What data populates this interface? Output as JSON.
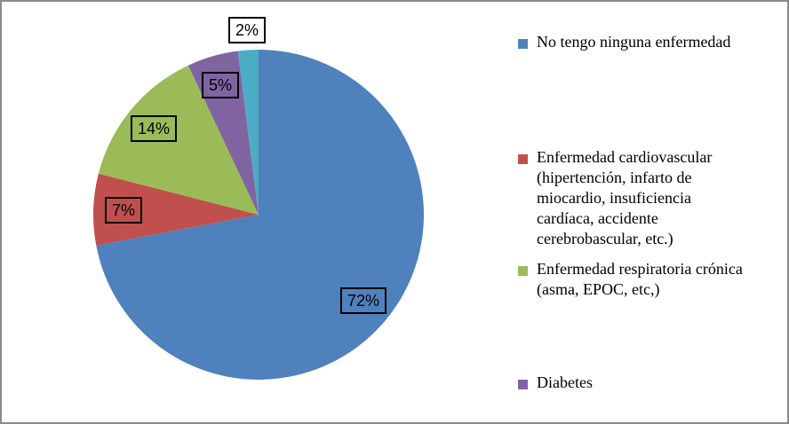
{
  "chart_data": {
    "type": "pie",
    "title": "",
    "legend_position": "right",
    "start_angle_deg": 0,
    "direction": "clockwise",
    "segments": [
      {
        "label": "No tengo ninguna enfermedad",
        "value": 72,
        "data_label": "72%",
        "color": "#4F81BD"
      },
      {
        "label": "Enfermedad cardiovascular (hipertención, infarto de miocardio, insuficiencia cardíaca, accidente cerebrobascular, etc.)",
        "value": 7,
        "data_label": "7%",
        "color": "#C0504D"
      },
      {
        "label": "Enfermedad respiratoria crónica (asma, EPOC, etc,)",
        "value": 14,
        "data_label": "14%",
        "color": "#9BBB59"
      },
      {
        "label": "Diabetes",
        "value": 5,
        "data_label": "5%",
        "color": "#8064A2"
      },
      {
        "label": "",
        "value": 2,
        "data_label": "2%",
        "color": "#4BACC6"
      }
    ]
  },
  "legend": {
    "items": [
      {
        "text": "No tengo ninguna enfermedad",
        "color": "#4F81BD"
      },
      {
        "text": "Enfermedad cardiovascular\n(hipertención, infarto de\nmiocardio, insuficiencia\ncardíaca, accidente\ncerebrobascular, etc.)",
        "color": "#C0504D"
      },
      {
        "text": "Enfermedad respiratoria crónica\n(asma, EPOC, etc,)",
        "color": "#9BBB59"
      },
      {
        "text": "Diabetes",
        "color": "#8064A2"
      }
    ]
  }
}
